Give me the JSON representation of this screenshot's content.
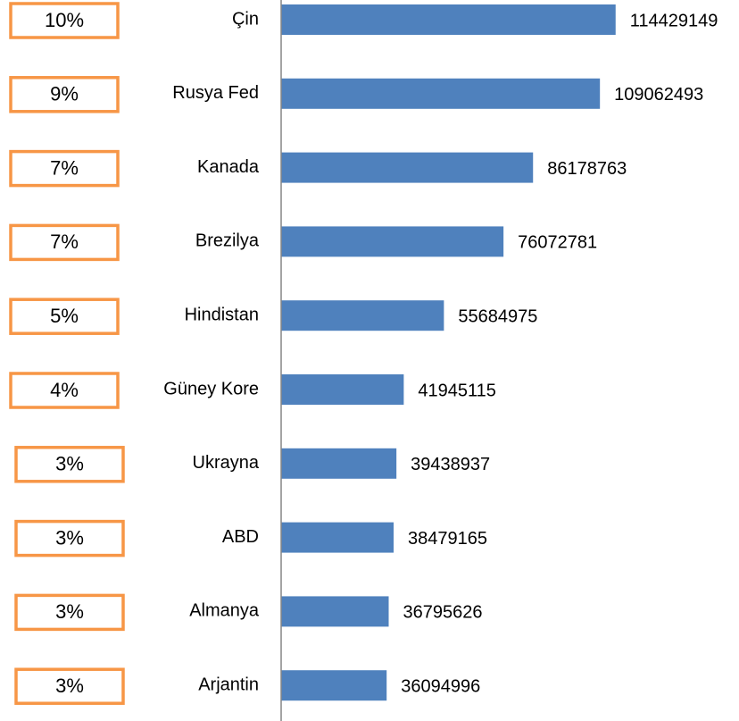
{
  "chart_data": {
    "type": "bar",
    "orientation": "horizontal",
    "categories": [
      "Çin",
      "Rusya Fed",
      "Kanada",
      "Brezilya",
      "Hindistan",
      "Güney Kore",
      "Ukrayna",
      "ABD",
      "Almanya",
      "Arjantin"
    ],
    "values": [
      114429149,
      109062493,
      86178763,
      76072781,
      55684975,
      41945115,
      39438937,
      38479165,
      36795626,
      36094996
    ],
    "color": "#4f81bd",
    "xlim": [
      0,
      120000000
    ],
    "share_values": [
      10,
      9,
      7,
      7,
      5,
      4,
      3,
      3,
      3,
      3
    ],
    "share_labels": [
      "10%",
      "9%",
      "7%",
      "7%",
      "5%",
      "4%",
      "3%",
      "3%",
      "3%",
      "3%"
    ],
    "share_box_color": "#f79646"
  }
}
